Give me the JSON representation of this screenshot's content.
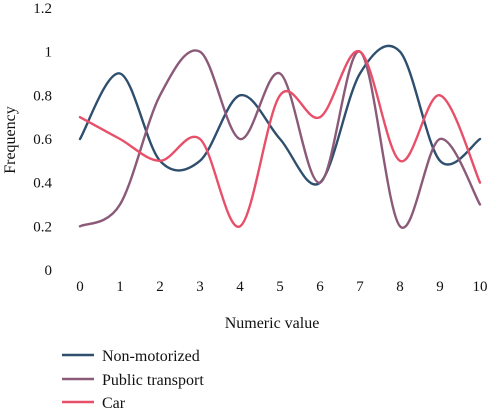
{
  "chart_data": {
    "type": "line",
    "xlabel": "Numeric value",
    "ylabel": "Frequency",
    "x": [
      0,
      1,
      2,
      3,
      4,
      5,
      6,
      7,
      8,
      9,
      10
    ],
    "xlim": [
      0,
      10
    ],
    "ylim": [
      0,
      1.2
    ],
    "x_ticks": [
      "0",
      "1",
      "2",
      "3",
      "4",
      "5",
      "6",
      "7",
      "8",
      "9",
      "10"
    ],
    "y_ticks": [
      "0",
      "0.2",
      "0.4",
      "0.6",
      "0.8",
      "1",
      "1.2"
    ],
    "grid": false,
    "legend_position": "bottom-left",
    "series": [
      {
        "name": "Non-motorized",
        "color": "#2f4f6f",
        "values": [
          0.6,
          0.9,
          0.5,
          0.5,
          0.8,
          0.6,
          0.4,
          0.9,
          1.0,
          0.5,
          0.6
        ]
      },
      {
        "name": "Public transport",
        "color": "#8a5a78",
        "values": [
          0.2,
          0.3,
          0.8,
          1.0,
          0.6,
          0.9,
          0.4,
          1.0,
          0.2,
          0.6,
          0.3
        ]
      },
      {
        "name": "Car",
        "color": "#e8506a",
        "values": [
          0.7,
          0.6,
          0.5,
          0.6,
          0.2,
          0.8,
          0.7,
          1.0,
          0.5,
          0.8,
          0.4
        ]
      }
    ]
  }
}
